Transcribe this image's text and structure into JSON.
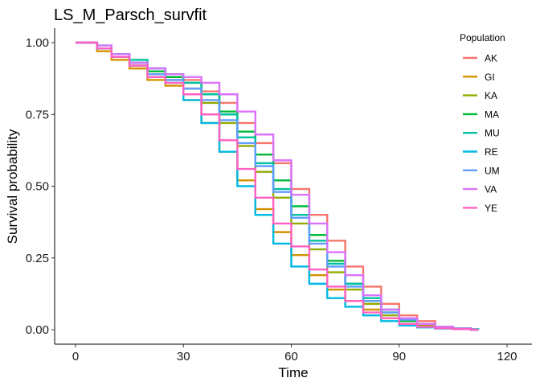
{
  "chart_data": {
    "type": "line",
    "step": true,
    "title": "LS_M_Parsch_survfit",
    "xlabel": "Time",
    "ylabel": "Survival probability",
    "xlim": [
      0,
      120
    ],
    "ylim": [
      0,
      1
    ],
    "xticks": [
      0,
      30,
      60,
      90,
      120
    ],
    "xtick_labels": [
      "0",
      "30",
      "60",
      "90",
      "120"
    ],
    "yticks": [
      0,
      0.25,
      0.5,
      0.75,
      1.0
    ],
    "ytick_labels": [
      "0.00",
      "0.25",
      "0.50",
      "0.75",
      "1.00"
    ],
    "grid": false,
    "legend": {
      "title": "Population",
      "position": "top-right"
    },
    "series": [
      {
        "name": "AK",
        "color": "#F8766D",
        "x": [
          0,
          3,
          6,
          10,
          15,
          20,
          25,
          30,
          35,
          40,
          45,
          50,
          55,
          60,
          65,
          70,
          75,
          80,
          85,
          90,
          95,
          100,
          105,
          110,
          112
        ],
        "y": [
          1.0,
          1.0,
          0.98,
          0.95,
          0.93,
          0.91,
          0.89,
          0.87,
          0.83,
          0.79,
          0.72,
          0.65,
          0.58,
          0.49,
          0.4,
          0.31,
          0.22,
          0.15,
          0.09,
          0.05,
          0.03,
          0.01,
          0.005,
          0.0,
          0.0
        ]
      },
      {
        "name": "GI",
        "color": "#D39200",
        "x": [
          0,
          3,
          6,
          10,
          15,
          20,
          25,
          30,
          35,
          40,
          45,
          50,
          55,
          60,
          65,
          70,
          75,
          80,
          85,
          90,
          95,
          100,
          105,
          110,
          112
        ],
        "y": [
          1.0,
          1.0,
          0.97,
          0.94,
          0.91,
          0.87,
          0.85,
          0.8,
          0.72,
          0.62,
          0.52,
          0.42,
          0.34,
          0.26,
          0.19,
          0.14,
          0.1,
          0.07,
          0.04,
          0.02,
          0.01,
          0.005,
          0.002,
          0.0,
          0.0
        ]
      },
      {
        "name": "KA",
        "color": "#93AA00",
        "x": [
          0,
          3,
          6,
          10,
          15,
          20,
          25,
          30,
          35,
          40,
          45,
          50,
          55,
          60,
          65,
          70,
          75,
          80,
          85,
          90,
          95,
          100,
          105,
          110,
          112
        ],
        "y": [
          1.0,
          1.0,
          0.98,
          0.95,
          0.92,
          0.89,
          0.87,
          0.84,
          0.79,
          0.72,
          0.64,
          0.55,
          0.46,
          0.37,
          0.28,
          0.2,
          0.14,
          0.09,
          0.05,
          0.03,
          0.015,
          0.007,
          0.003,
          0.0,
          0.0
        ]
      },
      {
        "name": "MA",
        "color": "#00BA38",
        "x": [
          0,
          3,
          6,
          10,
          15,
          20,
          25,
          30,
          35,
          40,
          45,
          50,
          55,
          60,
          65,
          70,
          75,
          80,
          85,
          90,
          95,
          100,
          105,
          110,
          112
        ],
        "y": [
          1.0,
          1.0,
          0.98,
          0.96,
          0.93,
          0.9,
          0.88,
          0.86,
          0.82,
          0.76,
          0.69,
          0.61,
          0.52,
          0.43,
          0.33,
          0.24,
          0.16,
          0.1,
          0.06,
          0.03,
          0.02,
          0.008,
          0.003,
          0.0,
          0.0
        ]
      },
      {
        "name": "MU",
        "color": "#00C19F",
        "x": [
          0,
          3,
          6,
          10,
          15,
          20,
          25,
          30,
          35,
          40,
          45,
          50,
          55,
          60,
          65,
          70,
          75,
          80,
          85,
          90,
          95,
          100,
          105,
          110,
          112
        ],
        "y": [
          1.0,
          1.0,
          0.99,
          0.96,
          0.94,
          0.91,
          0.89,
          0.86,
          0.82,
          0.75,
          0.67,
          0.58,
          0.49,
          0.4,
          0.31,
          0.23,
          0.16,
          0.11,
          0.07,
          0.04,
          0.02,
          0.01,
          0.005,
          0.002,
          0.0
        ]
      },
      {
        "name": "RE",
        "color": "#00B9E3",
        "x": [
          0,
          3,
          6,
          10,
          15,
          20,
          25,
          30,
          35,
          40,
          45,
          50,
          55,
          60,
          65,
          70,
          75,
          80,
          85,
          90,
          95,
          100,
          105,
          110,
          112
        ],
        "y": [
          1.0,
          1.0,
          0.98,
          0.96,
          0.93,
          0.91,
          0.86,
          0.8,
          0.72,
          0.62,
          0.5,
          0.4,
          0.3,
          0.22,
          0.16,
          0.11,
          0.08,
          0.05,
          0.03,
          0.015,
          0.008,
          0.004,
          0.002,
          0.0,
          0.0
        ]
      },
      {
        "name": "UM",
        "color": "#619CFF",
        "x": [
          0,
          3,
          6,
          10,
          15,
          20,
          25,
          30,
          35,
          40,
          45,
          50,
          55,
          60,
          65,
          70,
          75,
          80,
          85,
          90,
          95,
          100,
          105,
          110,
          112
        ],
        "y": [
          1.0,
          1.0,
          0.98,
          0.95,
          0.92,
          0.89,
          0.87,
          0.84,
          0.8,
          0.73,
          0.65,
          0.57,
          0.48,
          0.39,
          0.3,
          0.22,
          0.15,
          0.1,
          0.06,
          0.035,
          0.02,
          0.01,
          0.004,
          0.0,
          0.0
        ]
      },
      {
        "name": "VA",
        "color": "#DB72FB",
        "x": [
          0,
          3,
          6,
          10,
          15,
          20,
          25,
          30,
          35,
          40,
          45,
          50,
          55,
          60,
          65,
          70,
          75,
          80,
          85,
          90,
          95,
          100,
          105,
          110,
          112
        ],
        "y": [
          1.0,
          1.0,
          0.99,
          0.96,
          0.93,
          0.91,
          0.89,
          0.88,
          0.86,
          0.82,
          0.76,
          0.68,
          0.59,
          0.47,
          0.37,
          0.27,
          0.19,
          0.12,
          0.07,
          0.04,
          0.02,
          0.01,
          0.004,
          0.0,
          0.0
        ]
      },
      {
        "name": "YE",
        "color": "#FF61C3",
        "x": [
          0,
          3,
          6,
          10,
          15,
          20,
          25,
          30,
          35,
          40,
          45,
          50,
          55,
          60,
          65,
          70,
          75,
          80,
          85,
          90,
          95,
          100,
          105,
          110,
          112
        ],
        "y": [
          1.0,
          1.0,
          0.98,
          0.95,
          0.92,
          0.88,
          0.86,
          0.82,
          0.75,
          0.66,
          0.56,
          0.46,
          0.37,
          0.29,
          0.21,
          0.15,
          0.1,
          0.06,
          0.04,
          0.02,
          0.01,
          0.005,
          0.002,
          0.0,
          0.0
        ]
      }
    ]
  }
}
